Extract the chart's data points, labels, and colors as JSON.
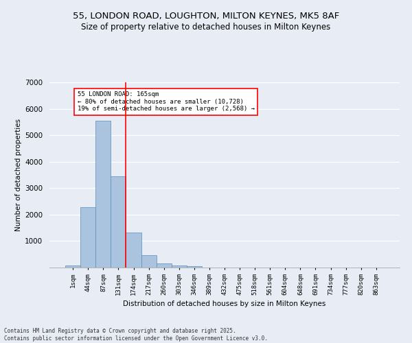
{
  "title_line1": "55, LONDON ROAD, LOUGHTON, MILTON KEYNES, MK5 8AF",
  "title_line2": "Size of property relative to detached houses in Milton Keynes",
  "xlabel": "Distribution of detached houses by size in Milton Keynes",
  "ylabel": "Number of detached properties",
  "bar_labels": [
    "1sqm",
    "44sqm",
    "87sqm",
    "131sqm",
    "174sqm",
    "217sqm",
    "260sqm",
    "303sqm",
    "346sqm",
    "389sqm",
    "432sqm",
    "475sqm",
    "518sqm",
    "561sqm",
    "604sqm",
    "648sqm",
    "691sqm",
    "734sqm",
    "777sqm",
    "820sqm",
    "863sqm"
  ],
  "bar_values": [
    70,
    2280,
    5550,
    3450,
    1320,
    470,
    160,
    80,
    60,
    0,
    0,
    0,
    0,
    0,
    0,
    0,
    0,
    0,
    0,
    0,
    0
  ],
  "bar_color": "#aac4e0",
  "bar_edgecolor": "#5b8db8",
  "background_color": "#e8edf5",
  "grid_color": "#ffffff",
  "vline_color": "red",
  "annotation_text": "55 LONDON ROAD: 165sqm\n← 80% of detached houses are smaller (10,728)\n19% of semi-detached houses are larger (2,568) →",
  "annotation_box_color": "white",
  "annotation_box_edgecolor": "red",
  "ylim": [
    0,
    7000
  ],
  "yticks": [
    0,
    1000,
    2000,
    3000,
    4000,
    5000,
    6000,
    7000
  ],
  "footer_text": "Contains HM Land Registry data © Crown copyright and database right 2025.\nContains public sector information licensed under the Open Government Licence v3.0.",
  "figsize": [
    6.0,
    5.0
  ],
  "dpi": 100
}
